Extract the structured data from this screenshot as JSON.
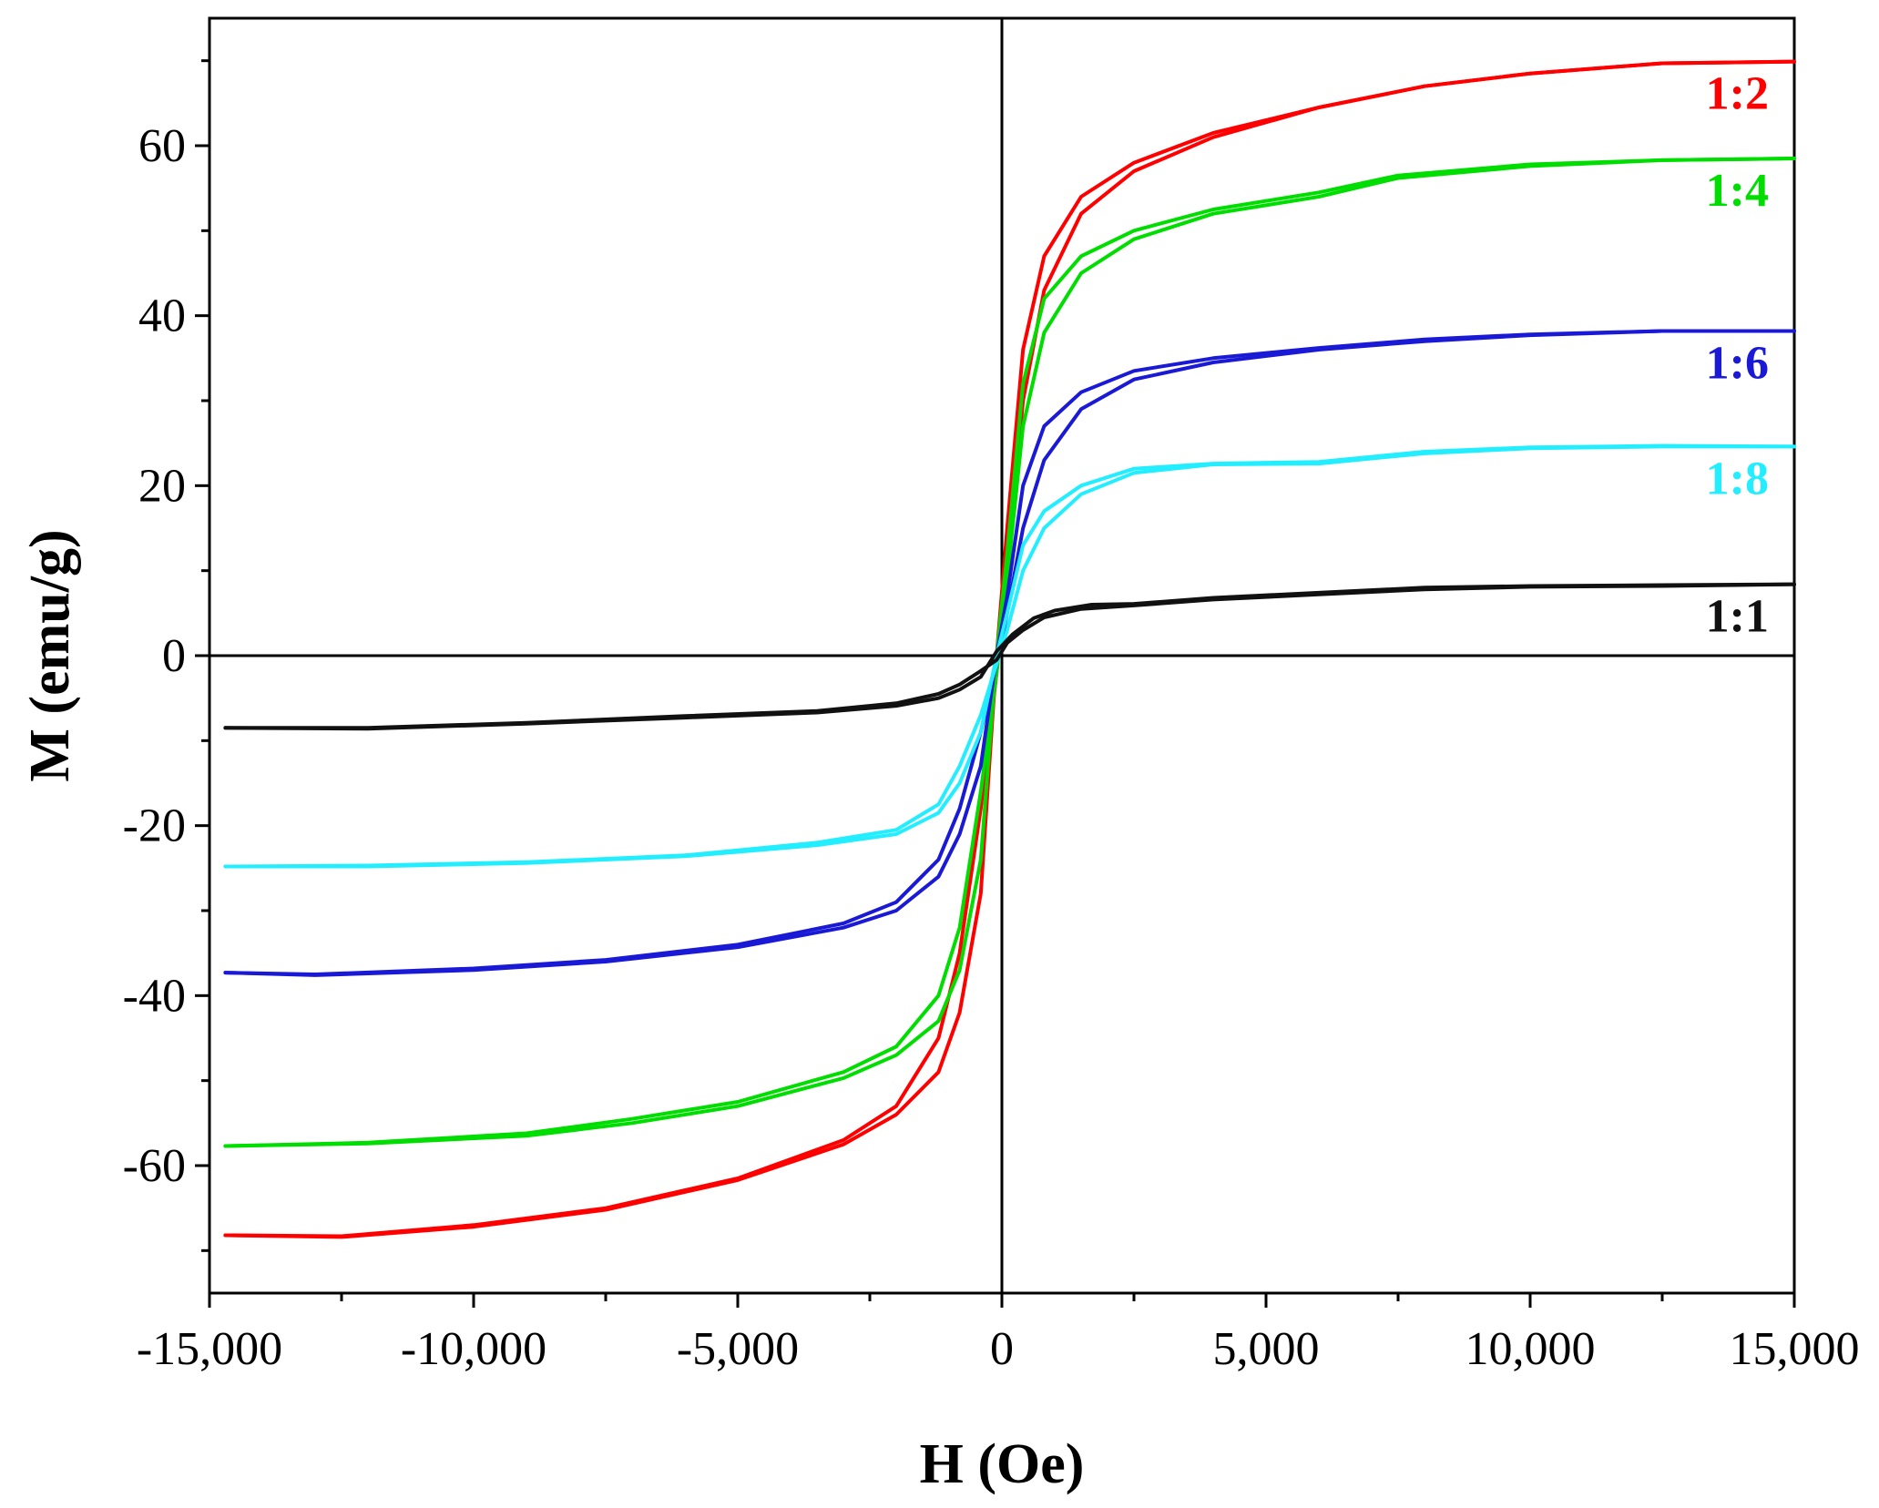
{
  "chart_data": {
    "type": "line",
    "title": "",
    "xlabel": "H (Oe)",
    "ylabel": "M (emu/g)",
    "xlim": [
      -15000,
      15000
    ],
    "ylim": [
      -75,
      75
    ],
    "x_ticks": [
      -15000,
      -10000,
      -5000,
      0,
      5000,
      10000,
      15000
    ],
    "x_tick_labels": [
      "-15,000",
      "-10,000",
      "-5,000",
      "0",
      "5,000",
      "10,000",
      "15,000"
    ],
    "y_ticks": [
      -60,
      -40,
      -20,
      0,
      20,
      40,
      60
    ],
    "y_tick_labels": [
      "-60",
      "-40",
      "-20",
      "0",
      "20",
      "40",
      "60"
    ],
    "grid": false,
    "series": [
      {
        "name": "1:2",
        "color": "#ff0000",
        "ascending": [
          [
            -14700,
            -68.2
          ],
          [
            -12500,
            -68.3
          ],
          [
            -10000,
            -67
          ],
          [
            -7500,
            -65
          ],
          [
            -5000,
            -61.5
          ],
          [
            -3000,
            -57
          ],
          [
            -2000,
            -53
          ],
          [
            -1200,
            -45
          ],
          [
            -800,
            -35
          ],
          [
            -400,
            -18
          ],
          [
            -100,
            -2
          ],
          [
            100,
            10
          ],
          [
            400,
            30
          ],
          [
            800,
            43
          ],
          [
            1500,
            52
          ],
          [
            2500,
            57
          ],
          [
            4000,
            61
          ],
          [
            6000,
            64.5
          ],
          [
            8000,
            67
          ],
          [
            10000,
            68.5
          ],
          [
            12500,
            69.7
          ],
          [
            15000,
            69.9
          ]
        ],
        "descending": [
          [
            15000,
            69.9
          ],
          [
            12500,
            69.7
          ],
          [
            10000,
            68.5
          ],
          [
            8000,
            67
          ],
          [
            6000,
            64.5
          ],
          [
            4000,
            61.5
          ],
          [
            2500,
            58
          ],
          [
            1500,
            54
          ],
          [
            800,
            47
          ],
          [
            400,
            36
          ],
          [
            100,
            15
          ],
          [
            -100,
            0
          ],
          [
            -400,
            -28
          ],
          [
            -800,
            -42
          ],
          [
            -1200,
            -49
          ],
          [
            -2000,
            -54
          ],
          [
            -3000,
            -57.5
          ],
          [
            -5000,
            -61.7
          ],
          [
            -7500,
            -65.2
          ],
          [
            -10000,
            -67.2
          ],
          [
            -12500,
            -68.4
          ],
          [
            -14700,
            -68.2
          ]
        ]
      },
      {
        "name": "1:4",
        "color": "#00dd00",
        "ascending": [
          [
            -14700,
            -57.7
          ],
          [
            -12000,
            -57.3
          ],
          [
            -9000,
            -56.2
          ],
          [
            -7000,
            -54.5
          ],
          [
            -5000,
            -52.5
          ],
          [
            -3000,
            -49
          ],
          [
            -2000,
            -46
          ],
          [
            -1200,
            -40
          ],
          [
            -800,
            -32
          ],
          [
            -400,
            -16
          ],
          [
            -100,
            -2
          ],
          [
            100,
            9
          ],
          [
            400,
            27
          ],
          [
            800,
            38
          ],
          [
            1500,
            45
          ],
          [
            2500,
            49
          ],
          [
            4000,
            52
          ],
          [
            6000,
            54
          ],
          [
            7500,
            56.2
          ],
          [
            10000,
            57.6
          ],
          [
            12500,
            58.3
          ],
          [
            15000,
            58.5
          ]
        ],
        "descending": [
          [
            15000,
            58.5
          ],
          [
            12500,
            58.3
          ],
          [
            10000,
            57.8
          ],
          [
            7500,
            56.5
          ],
          [
            6000,
            54.5
          ],
          [
            4000,
            52.5
          ],
          [
            2500,
            50
          ],
          [
            1500,
            47
          ],
          [
            800,
            42
          ],
          [
            400,
            32
          ],
          [
            100,
            12
          ],
          [
            -100,
            0
          ],
          [
            -400,
            -24
          ],
          [
            -800,
            -37
          ],
          [
            -1200,
            -43
          ],
          [
            -2000,
            -47
          ],
          [
            -3000,
            -49.7
          ],
          [
            -5000,
            -53
          ],
          [
            -7000,
            -55
          ],
          [
            -9000,
            -56.5
          ],
          [
            -12000,
            -57.4
          ],
          [
            -14700,
            -57.7
          ]
        ]
      },
      {
        "name": "1:6",
        "color": "#1a1ad6",
        "ascending": [
          [
            -14700,
            -37.3
          ],
          [
            -13000,
            -37.5
          ],
          [
            -10000,
            -36.8
          ],
          [
            -7500,
            -35.8
          ],
          [
            -5000,
            -34
          ],
          [
            -3000,
            -31.5
          ],
          [
            -2000,
            -29
          ],
          [
            -1200,
            -24
          ],
          [
            -800,
            -18
          ],
          [
            -400,
            -9
          ],
          [
            -100,
            -1
          ],
          [
            100,
            5
          ],
          [
            400,
            15
          ],
          [
            800,
            23
          ],
          [
            1500,
            29
          ],
          [
            2500,
            32.5
          ],
          [
            4000,
            34.5
          ],
          [
            6000,
            36
          ],
          [
            8000,
            37
          ],
          [
            10000,
            37.7
          ],
          [
            12500,
            38.2
          ],
          [
            15000,
            38.2
          ]
        ],
        "descending": [
          [
            15000,
            38.2
          ],
          [
            12500,
            38.2
          ],
          [
            10000,
            37.8
          ],
          [
            8000,
            37.2
          ],
          [
            6000,
            36.2
          ],
          [
            4000,
            35
          ],
          [
            2500,
            33.5
          ],
          [
            1500,
            31
          ],
          [
            800,
            27
          ],
          [
            400,
            20
          ],
          [
            100,
            7
          ],
          [
            -100,
            0
          ],
          [
            -400,
            -13
          ],
          [
            -800,
            -21
          ],
          [
            -1200,
            -26
          ],
          [
            -2000,
            -30
          ],
          [
            -3000,
            -32
          ],
          [
            -5000,
            -34.3
          ],
          [
            -7500,
            -36
          ],
          [
            -10000,
            -37
          ],
          [
            -13000,
            -37.6
          ],
          [
            -14700,
            -37.3
          ]
        ]
      },
      {
        "name": "1:8",
        "color": "#22eeff",
        "ascending": [
          [
            -14700,
            -24.8
          ],
          [
            -12000,
            -24.7
          ],
          [
            -9000,
            -24.3
          ],
          [
            -6000,
            -23.5
          ],
          [
            -3500,
            -22
          ],
          [
            -2000,
            -20.5
          ],
          [
            -1200,
            -17.5
          ],
          [
            -800,
            -13
          ],
          [
            -400,
            -7
          ],
          [
            -100,
            -1
          ],
          [
            100,
            3
          ],
          [
            400,
            10
          ],
          [
            800,
            15
          ],
          [
            1500,
            19
          ],
          [
            2500,
            21.5
          ],
          [
            4000,
            22.5
          ],
          [
            6000,
            22.6
          ],
          [
            8000,
            23.8
          ],
          [
            10000,
            24.4
          ],
          [
            12500,
            24.6
          ],
          [
            15000,
            24.6
          ]
        ],
        "descending": [
          [
            15000,
            24.6
          ],
          [
            12500,
            24.7
          ],
          [
            10000,
            24.5
          ],
          [
            8000,
            24
          ],
          [
            6000,
            22.8
          ],
          [
            4000,
            22.6
          ],
          [
            2500,
            22
          ],
          [
            1500,
            20
          ],
          [
            800,
            17
          ],
          [
            400,
            13
          ],
          [
            100,
            5
          ],
          [
            -100,
            0
          ],
          [
            -400,
            -9
          ],
          [
            -800,
            -15
          ],
          [
            -1200,
            -18.5
          ],
          [
            -2000,
            -21
          ],
          [
            -3500,
            -22.3
          ],
          [
            -6000,
            -23.6
          ],
          [
            -9000,
            -24.4
          ],
          [
            -12000,
            -24.8
          ],
          [
            -14700,
            -24.8
          ]
        ]
      },
      {
        "name": "1:1",
        "color": "#111111",
        "ascending": [
          [
            -14700,
            -8.5
          ],
          [
            -12000,
            -8.5
          ],
          [
            -9000,
            -7.9
          ],
          [
            -6000,
            -7.1
          ],
          [
            -3500,
            -6.5
          ],
          [
            -2000,
            -5.6
          ],
          [
            -1200,
            -4.5
          ],
          [
            -800,
            -3.4
          ],
          [
            -400,
            -1.8
          ],
          [
            -100,
            -0.5
          ],
          [
            100,
            1.5
          ],
          [
            400,
            3
          ],
          [
            800,
            4.5
          ],
          [
            1500,
            5.5
          ],
          [
            2500,
            5.9
          ],
          [
            4000,
            6.6
          ],
          [
            6000,
            7.2
          ],
          [
            8000,
            7.8
          ],
          [
            10000,
            8.1
          ],
          [
            12500,
            8.2
          ],
          [
            15000,
            8.4
          ]
        ],
        "descending": [
          [
            15000,
            8.4
          ],
          [
            12500,
            8.3
          ],
          [
            10000,
            8.2
          ],
          [
            8000,
            8
          ],
          [
            6000,
            7.4
          ],
          [
            4000,
            6.8
          ],
          [
            2500,
            6.1
          ],
          [
            1700,
            6
          ],
          [
            1000,
            5.3
          ],
          [
            600,
            4.4
          ],
          [
            200,
            2.5
          ],
          [
            -100,
            0.5
          ],
          [
            -400,
            -2.5
          ],
          [
            -800,
            -4
          ],
          [
            -1200,
            -5
          ],
          [
            -2000,
            -5.9
          ],
          [
            -3500,
            -6.7
          ],
          [
            -6000,
            -7.3
          ],
          [
            -9000,
            -8
          ],
          [
            -12000,
            -8.6
          ],
          [
            -14700,
            -8.5
          ]
        ]
      }
    ]
  }
}
